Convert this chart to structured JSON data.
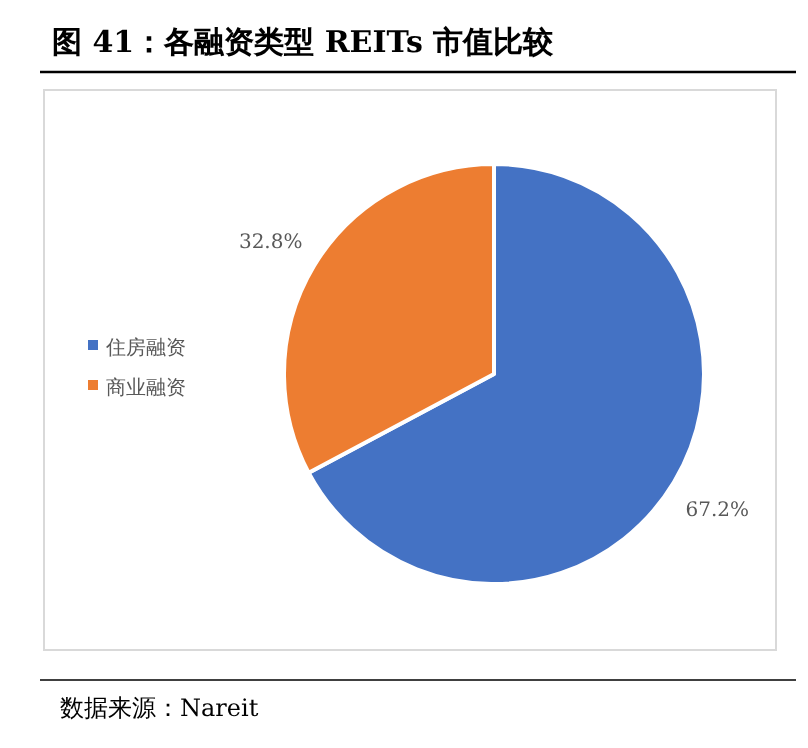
{
  "chart_data": {
    "type": "pie",
    "title": "图 41：各融资类型 REITs 市值比较",
    "categories": [
      "住房融资",
      "商业融资"
    ],
    "values": [
      67.2,
      32.8
    ],
    "value_labels": [
      "67.2%",
      "32.8%"
    ],
    "colors": [
      "#4472c4",
      "#ed7d31"
    ],
    "legend": "left",
    "annotations": [
      "数据来源：Nareit"
    ]
  }
}
